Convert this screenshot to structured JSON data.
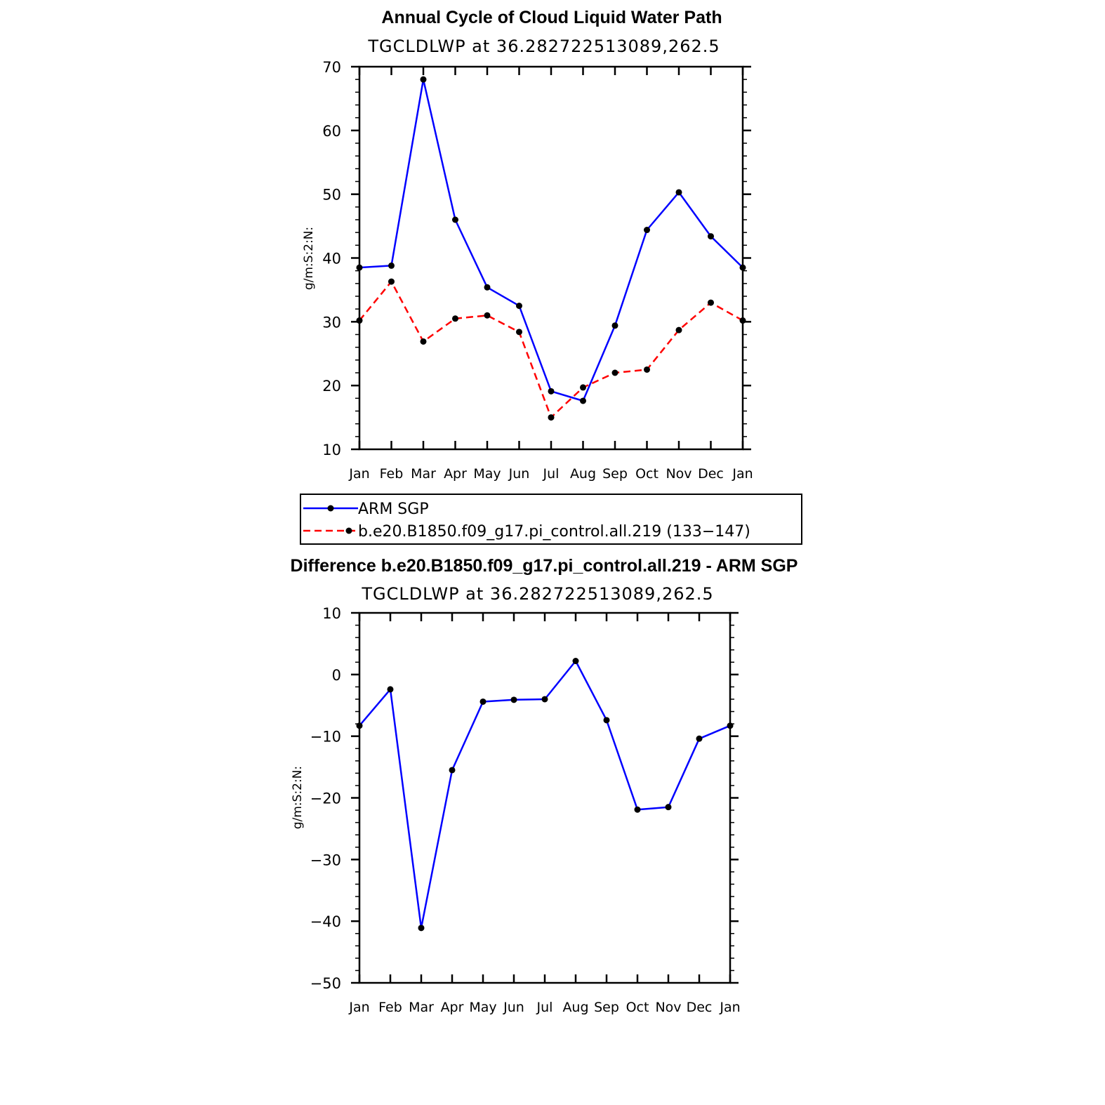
{
  "chart_data": [
    {
      "type": "line",
      "title": "Annual Cycle of Cloud Liquid Water Path",
      "subtitle": "TGCLDLWP at 36.282722513089,262.5",
      "xlabel": "",
      "ylabel": "g/m:S:2:N:",
      "categories": [
        "Jan",
        "Feb",
        "Mar",
        "Apr",
        "May",
        "Jun",
        "Jul",
        "Aug",
        "Sep",
        "Oct",
        "Nov",
        "Dec",
        "Jan"
      ],
      "ylim": [
        10,
        70
      ],
      "yticks": [
        "10",
        "20",
        "30",
        "40",
        "50",
        "60",
        "70"
      ],
      "series": [
        {
          "name": "ARM SGP",
          "color": "#0000ff",
          "dash": "solid",
          "values": [
            38.5,
            38.8,
            68.0,
            46.0,
            35.4,
            32.5,
            19.1,
            17.6,
            29.4,
            44.4,
            50.3,
            43.4,
            38.5
          ]
        },
        {
          "name": "b.e20.B1850.f09_g17.pi_control.all.219 (133−147)",
          "color": "#ff0000",
          "dash": "dashed",
          "values": [
            30.2,
            36.3,
            26.9,
            30.5,
            31.0,
            28.4,
            15.0,
            19.7,
            22.0,
            22.5,
            28.7,
            33.0,
            30.2
          ]
        }
      ],
      "legend": [
        "ARM SGP",
        "b.e20.B1850.f09_g17.pi_control.all.219 (133−147)"
      ]
    },
    {
      "type": "line",
      "title": "Difference b.e20.B1850.f09_g17.pi_control.all.219 - ARM SGP",
      "subtitle": "TGCLDLWP at 36.282722513089,262.5",
      "xlabel": "",
      "ylabel": "g/m:S:2:N:",
      "categories": [
        "Jan",
        "Feb",
        "Mar",
        "Apr",
        "May",
        "Jun",
        "Jul",
        "Aug",
        "Sep",
        "Oct",
        "Nov",
        "Dec",
        "Jan"
      ],
      "ylim": [
        -50,
        10
      ],
      "yticks": [
        "−50",
        "−40",
        "−30",
        "−20",
        "−10",
        "0",
        "10"
      ],
      "series": [
        {
          "name": "Difference",
          "color": "#0000ff",
          "dash": "solid",
          "values": [
            -8.3,
            -2.4,
            -41.1,
            -15.5,
            -4.4,
            -4.1,
            -4.0,
            2.2,
            -7.4,
            -21.9,
            -21.5,
            -10.4,
            -8.3
          ]
        }
      ]
    }
  ]
}
